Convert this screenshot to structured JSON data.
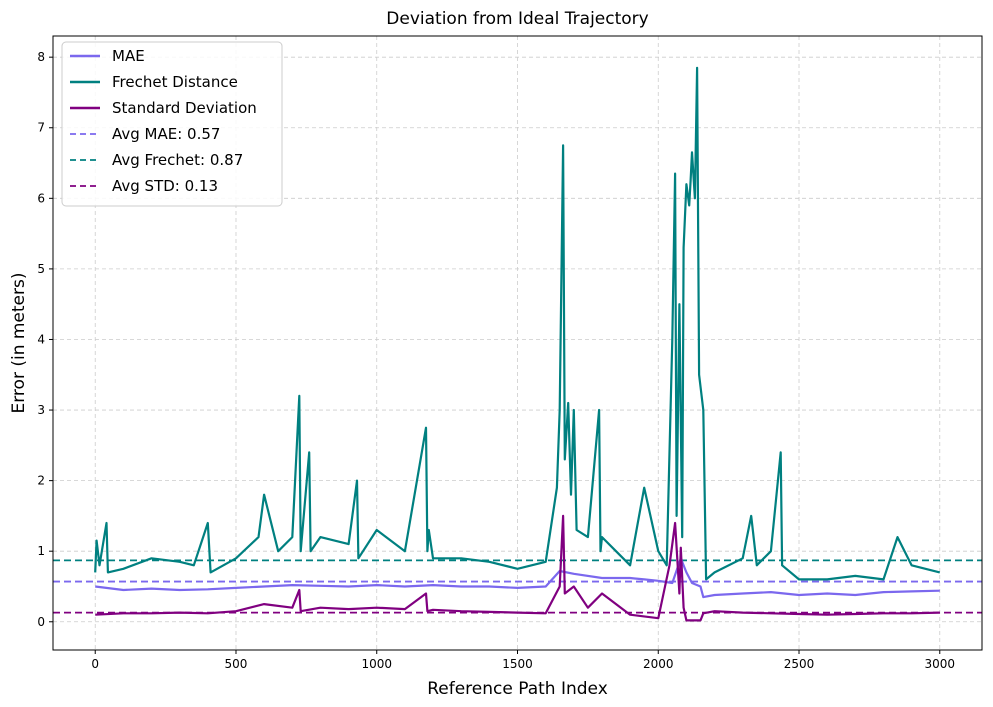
{
  "chart_data": {
    "type": "line",
    "title": "Deviation from Ideal Trajectory",
    "xlabel": "Reference Path Index",
    "ylabel": "Error (in meters)",
    "xlim": [
      -150,
      3150
    ],
    "ylim": [
      -0.4,
      8.3
    ],
    "xticks": [
      0,
      500,
      1000,
      1500,
      2000,
      2500,
      3000
    ],
    "yticks": [
      0,
      1,
      2,
      3,
      4,
      5,
      6,
      7,
      8
    ],
    "grid": true,
    "legend_position": "top-left",
    "series": [
      {
        "name": "MAE",
        "color": "#7B68EE",
        "style": "solid",
        "x": [
          0,
          100,
          200,
          300,
          400,
          500,
          600,
          700,
          800,
          900,
          1000,
          1100,
          1200,
          1300,
          1400,
          1500,
          1600,
          1650,
          1700,
          1800,
          1900,
          1950,
          2000,
          2050,
          2080,
          2100,
          2120,
          2150,
          2160,
          2200,
          2300,
          2400,
          2500,
          2600,
          2700,
          2800,
          2900,
          3000
        ],
        "y": [
          0.5,
          0.45,
          0.47,
          0.45,
          0.46,
          0.48,
          0.5,
          0.52,
          0.51,
          0.5,
          0.52,
          0.5,
          0.52,
          0.5,
          0.5,
          0.48,
          0.5,
          0.72,
          0.68,
          0.62,
          0.62,
          0.6,
          0.58,
          0.55,
          0.9,
          0.7,
          0.55,
          0.5,
          0.35,
          0.38,
          0.4,
          0.42,
          0.38,
          0.4,
          0.38,
          0.42,
          0.43,
          0.44
        ]
      },
      {
        "name": "Frechet Distance",
        "color": "#008080",
        "style": "solid",
        "x": [
          0,
          5,
          15,
          40,
          45,
          100,
          200,
          300,
          350,
          400,
          410,
          500,
          580,
          600,
          650,
          700,
          725,
          730,
          760,
          765,
          800,
          900,
          930,
          935,
          1000,
          1100,
          1175,
          1180,
          1185,
          1200,
          1300,
          1400,
          1500,
          1550,
          1600,
          1640,
          1650,
          1662,
          1668,
          1680,
          1690,
          1700,
          1710,
          1750,
          1790,
          1795,
          1800,
          1850,
          1900,
          1950,
          2000,
          2030,
          2050,
          2060,
          2065,
          2075,
          2085,
          2090,
          2100,
          2110,
          2115,
          2120,
          2130,
          2138,
          2145,
          2160,
          2170,
          2200,
          2300,
          2330,
          2350,
          2400,
          2435,
          2440,
          2500,
          2600,
          2700,
          2800,
          2850,
          2900,
          3000
        ],
        "y": [
          0.7,
          1.15,
          0.8,
          1.4,
          0.7,
          0.75,
          0.9,
          0.85,
          0.8,
          1.4,
          0.7,
          0.9,
          1.2,
          1.8,
          1.0,
          1.2,
          3.2,
          1.0,
          2.4,
          1.0,
          1.2,
          1.1,
          2.0,
          0.9,
          1.3,
          1.0,
          2.75,
          1.0,
          1.3,
          0.9,
          0.9,
          0.85,
          0.75,
          0.8,
          0.85,
          1.9,
          3.0,
          6.75,
          2.3,
          3.1,
          1.8,
          3.0,
          1.3,
          1.2,
          3.0,
          1.0,
          1.2,
          1.0,
          0.8,
          1.9,
          1.0,
          0.8,
          4.0,
          6.35,
          1.5,
          4.5,
          1.2,
          5.3,
          6.2,
          5.9,
          6.25,
          6.65,
          6.0,
          7.85,
          3.5,
          3.0,
          0.6,
          0.7,
          0.9,
          1.5,
          0.8,
          1.0,
          2.4,
          0.8,
          0.6,
          0.6,
          0.65,
          0.6,
          1.2,
          0.8,
          0.7
        ]
      },
      {
        "name": "Standard Deviation",
        "color": "#800080",
        "style": "solid",
        "x": [
          0,
          100,
          200,
          300,
          400,
          500,
          600,
          700,
          725,
          730,
          800,
          900,
          1000,
          1100,
          1175,
          1180,
          1200,
          1300,
          1400,
          1500,
          1600,
          1650,
          1662,
          1668,
          1700,
          1750,
          1800,
          1900,
          2000,
          2040,
          2060,
          2075,
          2080,
          2090,
          2100,
          2150,
          2160,
          2200,
          2300,
          2400,
          2500,
          2600,
          2700,
          2800,
          2900,
          3000
        ],
        "y": [
          0.1,
          0.12,
          0.12,
          0.13,
          0.12,
          0.15,
          0.25,
          0.2,
          0.45,
          0.15,
          0.2,
          0.18,
          0.2,
          0.18,
          0.4,
          0.15,
          0.17,
          0.15,
          0.14,
          0.13,
          0.12,
          0.5,
          1.5,
          0.4,
          0.5,
          0.2,
          0.4,
          0.1,
          0.05,
          0.8,
          1.4,
          0.4,
          1.05,
          0.2,
          0.02,
          0.02,
          0.12,
          0.15,
          0.13,
          0.12,
          0.11,
          0.1,
          0.11,
          0.12,
          0.12,
          0.13
        ]
      },
      {
        "name": "Avg MAE: 0.57",
        "color": "#7B68EE",
        "style": "dashed",
        "hline": 0.57
      },
      {
        "name": "Avg Frechet: 0.87",
        "color": "#008080",
        "style": "dashed",
        "hline": 0.87
      },
      {
        "name": "Avg STD: 0.13",
        "color": "#800080",
        "style": "dashed",
        "hline": 0.13
      }
    ]
  }
}
